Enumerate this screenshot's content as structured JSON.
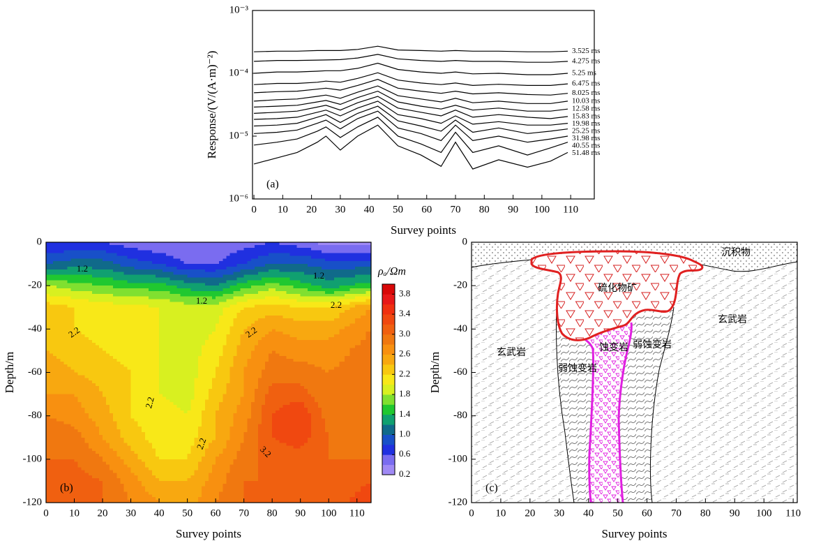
{
  "chart_data": [
    {
      "type": "line",
      "log": true,
      "panel_label": "(a)",
      "xlabel": "Survey points",
      "ylabel": "Response/(V/(A·m)⁻²)",
      "xlim": [
        -0.5,
        118.2
      ],
      "xticks": [
        0,
        10,
        20,
        30,
        40,
        50,
        60,
        70,
        80,
        90,
        100,
        110
      ],
      "ylim": [
        1e-06,
        0.001
      ],
      "yticks": [
        {
          "value": 1e-06,
          "label": "10⁻⁶"
        },
        {
          "value": 1e-05,
          "label": "10⁻⁵"
        },
        {
          "value": 0.0001,
          "label": "10⁻⁴"
        },
        {
          "value": 0.001,
          "label": "10⁻³"
        }
      ],
      "x": [
        0,
        8,
        15,
        22,
        25,
        30,
        36,
        43,
        50,
        58,
        65,
        70,
        76,
        85,
        95,
        103,
        109
      ],
      "series": [
        {
          "name": "3.525 ms",
          "color": "#000000",
          "values": [
            0.00022,
            0.000225,
            0.000225,
            0.00023,
            0.00023,
            0.00023,
            0.00024,
            0.00027,
            0.000235,
            0.00023,
            0.000225,
            0.00023,
            0.000225,
            0.000225,
            0.00022,
            0.00022,
            0.000225
          ]
        },
        {
          "name": "4.275 ms",
          "color": "#000000",
          "values": [
            0.000155,
            0.00016,
            0.00016,
            0.000162,
            0.000163,
            0.000165,
            0.000175,
            0.0002,
            0.00017,
            0.00016,
            0.000155,
            0.00016,
            0.000155,
            0.000155,
            0.00015,
            0.00015,
            0.000155
          ]
        },
        {
          "name": "5.25 ms",
          "color": "#000000",
          "values": [
            0.0001,
            0.000105,
            0.000105,
            0.000108,
            0.00011,
            0.00011,
            0.00012,
            0.000145,
            0.000115,
            0.000105,
            0.0001,
            0.000105,
            9.8e-05,
            0.0001,
            9.5e-05,
            9.5e-05,
            0.0001
          ]
        },
        {
          "name": "6.475 ms",
          "color": "#000000",
          "values": [
            6.6e-05,
            6.9e-05,
            6.9e-05,
            7.2e-05,
            7.5e-05,
            7.2e-05,
            8.3e-05,
            0.000102,
            7.8e-05,
            7e-05,
            6.6e-05,
            7e-05,
            6.4e-05,
            6.7e-05,
            6.4e-05,
            6.4e-05,
            6.8e-05
          ]
        },
        {
          "name": "8.025 ms",
          "color": "#000000",
          "values": [
            4.9e-05,
            5.1e-05,
            5.2e-05,
            5.6e-05,
            5.8e-05,
            5.4e-05,
            6.4e-05,
            8e-05,
            5.8e-05,
            5.2e-05,
            4.8e-05,
            5.2e-05,
            4.7e-05,
            4.9e-05,
            4.6e-05,
            4.5e-05,
            4.8e-05
          ]
        },
        {
          "name": "10.03 ms",
          "color": "#000000",
          "values": [
            3.6e-05,
            3.8e-05,
            3.9e-05,
            4.3e-05,
            4.5e-05,
            4e-05,
            5e-05,
            6.3e-05,
            4.4e-05,
            3.9e-05,
            3.5e-05,
            4e-05,
            3.4e-05,
            3.6e-05,
            3.3e-05,
            3.3e-05,
            3.6e-05
          ]
        },
        {
          "name": "12.58 ms",
          "color": "#000000",
          "values": [
            2.9e-05,
            3e-05,
            3.1e-05,
            3.5e-05,
            3.7e-05,
            3.2e-05,
            4.1e-05,
            5.2e-05,
            3.5e-05,
            3e-05,
            2.7e-05,
            3.1e-05,
            2.6e-05,
            2.8e-05,
            2.5e-05,
            2.5e-05,
            2.7e-05
          ]
        },
        {
          "name": "15.83 ms",
          "color": "#000000",
          "values": [
            2.3e-05,
            2.4e-05,
            2.5e-05,
            2.9e-05,
            3.1e-05,
            2.6e-05,
            3.4e-05,
            4.3e-05,
            2.8e-05,
            2.4e-05,
            2.1e-05,
            2.6e-05,
            2e-05,
            2.2e-05,
            2e-05,
            1.9e-05,
            2.05e-05
          ]
        },
        {
          "name": "19.98 ms",
          "color": "#000000",
          "values": [
            1.85e-05,
            1.9e-05,
            2e-05,
            2.4e-05,
            2.6e-05,
            2.1e-05,
            2.8e-05,
            3.6e-05,
            2.2e-05,
            1.9e-05,
            1.6e-05,
            2.1e-05,
            1.55e-05,
            1.7e-05,
            1.5e-05,
            1.5e-05,
            1.6e-05
          ]
        },
        {
          "name": "25.25 ms",
          "color": "#000000",
          "values": [
            1.45e-05,
            1.5e-05,
            1.6e-05,
            2e-05,
            2.2e-05,
            1.65e-05,
            2.3e-05,
            3e-05,
            1.75e-05,
            1.45e-05,
            1.2e-05,
            1.8e-05,
            1.15e-05,
            1.35e-05,
            1.1e-05,
            1.2e-05,
            1.3e-05
          ]
        },
        {
          "name": "31.98 ms",
          "color": "#000000",
          "values": [
            1.1e-05,
            1.15e-05,
            1.25e-05,
            1.6e-05,
            1.8e-05,
            1.3e-05,
            1.9e-05,
            2.5e-05,
            1.35e-05,
            1.1e-05,
            8.5e-06,
            1.5e-05,
            8.5e-06,
            1e-05,
            8e-06,
            9e-06,
            1e-05
          ]
        },
        {
          "name": "40.55 ms",
          "color": "#000000",
          "values": [
            7.2e-06,
            8e-06,
            9e-06,
            1.2e-05,
            1.4e-05,
            9.5e-06,
            1.4e-05,
            2e-05,
            1e-05,
            7.5e-06,
            5.5e-06,
            1.15e-05,
            5.5e-06,
            7e-06,
            5e-06,
            6.5e-06,
            8e-06
          ]
        },
        {
          "name": "51.48 ms",
          "color": "#000000",
          "values": [
            3.6e-06,
            4.5e-06,
            5.5e-06,
            8e-06,
            1e-05,
            6e-06,
            1e-05,
            1.5e-05,
            7e-06,
            5e-06,
            3.3e-06,
            8e-06,
            3e-06,
            4.2e-06,
            3.2e-06,
            4e-06,
            5.5e-06
          ]
        }
      ]
    },
    {
      "type": "contour",
      "panel_label": "(b)",
      "xlabel": "Survey points",
      "ylabel": "Depth/m",
      "xlim": [
        0,
        115
      ],
      "xticks": [
        0,
        10,
        20,
        30,
        40,
        50,
        60,
        70,
        80,
        90,
        100,
        110
      ],
      "ylim": [
        -120,
        0
      ],
      "yticks": [
        -120,
        -100,
        -80,
        -60,
        -40,
        -20,
        0
      ],
      "x": [
        0,
        10,
        20,
        30,
        40,
        50,
        60,
        70,
        80,
        90,
        100,
        115
      ],
      "depth": [
        0,
        -10,
        -20,
        -30,
        -40,
        -50,
        -60,
        -70,
        -80,
        -90,
        -100,
        -110,
        -120
      ],
      "z": [
        [
          0.6,
          0.6,
          0.6,
          0.5,
          0.4,
          0.4,
          0.4,
          0.5,
          0.6,
          0.5,
          0.3,
          0.3
        ],
        [
          1.0,
          1.1,
          1.1,
          0.9,
          0.8,
          0.6,
          0.6,
          0.8,
          1.0,
          1.0,
          0.9,
          0.9
        ],
        [
          1.8,
          1.7,
          1.6,
          1.5,
          1.5,
          1.3,
          1.2,
          1.5,
          1.7,
          1.5,
          1.3,
          1.5
        ],
        [
          2.3,
          2.2,
          2.1,
          2.1,
          2.0,
          1.9,
          1.9,
          2.2,
          2.3,
          2.2,
          2.2,
          2.6
        ],
        [
          2.3,
          2.2,
          2.1,
          2.0,
          2.0,
          1.9,
          2.0,
          2.4,
          2.6,
          2.5,
          2.5,
          2.8
        ],
        [
          2.4,
          2.3,
          2.2,
          2.1,
          2.0,
          1.9,
          2.1,
          2.5,
          2.8,
          2.7,
          2.7,
          2.9
        ],
        [
          2.5,
          2.4,
          2.3,
          2.2,
          2.0,
          1.9,
          2.2,
          2.6,
          2.9,
          2.9,
          2.8,
          2.9
        ],
        [
          2.6,
          2.6,
          2.4,
          2.2,
          2.0,
          1.9,
          2.3,
          2.6,
          3.1,
          3.1,
          2.8,
          2.8
        ],
        [
          2.8,
          2.7,
          2.5,
          2.2,
          2.1,
          2.0,
          2.4,
          2.7,
          3.2,
          3.4,
          2.9,
          2.8
        ],
        [
          3.0,
          2.9,
          2.6,
          2.3,
          2.1,
          2.1,
          2.4,
          2.8,
          3.2,
          3.3,
          3.0,
          2.9
        ],
        [
          3.0,
          3.0,
          2.8,
          2.5,
          2.2,
          2.2,
          2.6,
          2.9,
          3.1,
          3.1,
          3.0,
          3.0
        ],
        [
          3.1,
          3.1,
          3.0,
          2.7,
          2.4,
          2.4,
          2.7,
          3.0,
          3.0,
          3.0,
          3.1,
          3.2
        ],
        [
          3.1,
          3.1,
          3.0,
          2.8,
          2.6,
          2.5,
          2.8,
          3.0,
          3.0,
          3.0,
          3.1,
          3.3
        ]
      ],
      "levels": [
        0.2,
        0.4,
        0.6,
        0.8,
        1.0,
        1.2,
        1.4,
        1.6,
        1.8,
        2.0,
        2.2,
        2.4,
        2.6,
        2.8,
        3.0,
        3.2,
        3.4,
        3.6,
        3.8,
        4.0
      ],
      "colors": [
        "#a08af5",
        "#7a6cf0",
        "#2030e0",
        "#1850c8",
        "#106a8a",
        "#10a070",
        "#20c830",
        "#80e030",
        "#d8f020",
        "#f8e818",
        "#f8c810",
        "#f8a810",
        "#f89010",
        "#f07810",
        "#f06010",
        "#f04810",
        "#f03010",
        "#e81818",
        "#d80808"
      ],
      "colorbar_label": "ρₐ/Ωm",
      "cticks": [
        3.8,
        3.4,
        {
          "value": 3,
          "label": "3.0"
        },
        2.6,
        2.2,
        1.8,
        1.4,
        {
          "value": 1,
          "label": "1.0"
        },
        0.6,
        0.2
      ],
      "contour_labels": [
        1.2,
        1.2,
        1.2,
        2.2,
        2.2,
        2.2,
        2.2,
        2.2,
        3.2
      ]
    },
    {
      "type": "section",
      "panel_label": "(c)",
      "xlabel": "Survey points",
      "ylabel": "Depth/m",
      "xlim": [
        0,
        111.4
      ],
      "xticks": [
        0,
        10,
        20,
        30,
        40,
        50,
        60,
        70,
        80,
        90,
        100,
        110
      ],
      "ylim": [
        -120,
        0
      ],
      "yticks": [
        -120,
        -100,
        -80,
        -60,
        -40,
        -20,
        0
      ],
      "labels": [
        "沉积物",
        "硫化物矿",
        "玄武岩",
        "玄武岩",
        "弱蚀变岩",
        "弱蚀变岩",
        "蚀变岩"
      ]
    }
  ]
}
